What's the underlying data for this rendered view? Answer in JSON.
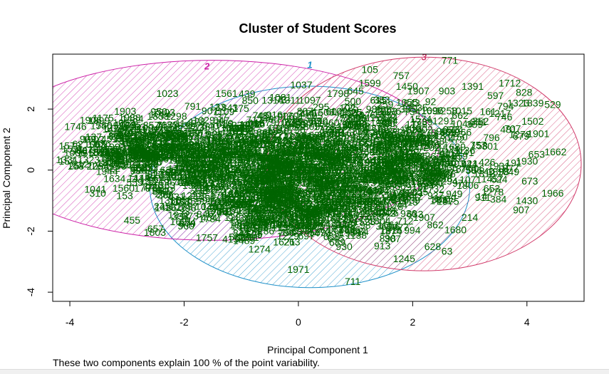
{
  "chart_data": {
    "type": "scatter",
    "title": "Cluster of Student Scores",
    "xlabel": "Principal Component 1",
    "ylabel": "Principal Component 2",
    "xlim": [
      -4.3,
      5.0
    ],
    "ylim": [
      -4.3,
      3.8
    ],
    "x_ticks": [
      -4,
      -2,
      0,
      2,
      4
    ],
    "y_ticks": [
      -4,
      -2,
      0,
      2
    ],
    "footnote": "These two components explain 100 % of the point variability.",
    "clusters": [
      {
        "name": "1",
        "color": "#1e90c8",
        "center": [
          0.2,
          -0.55
        ],
        "rx": 2.8,
        "ry": 3.3,
        "label_pos": [
          0.2,
          3.35
        ]
      },
      {
        "name": "2",
        "color": "#cc1fa6",
        "center": [
          -1.5,
          0.65
        ],
        "rx": 3.95,
        "ry": 2.95,
        "label_pos": [
          -1.6,
          3.3
        ]
      },
      {
        "name": "3",
        "color": "#d13a6a",
        "center": [
          2.2,
          0.2
        ],
        "rx": 2.75,
        "ry": 3.5,
        "label_pos": [
          2.2,
          3.6
        ]
      }
    ],
    "labeled_points": [
      {
        "label": "771",
        "x": 2.65,
        "y": 3.6
      },
      {
        "label": "105",
        "x": 1.25,
        "y": 3.3
      },
      {
        "label": "757",
        "x": 1.8,
        "y": 3.1
      },
      {
        "label": "1599",
        "x": 1.25,
        "y": 2.85
      },
      {
        "label": "1450",
        "x": 1.9,
        "y": 2.75
      },
      {
        "label": "1037",
        "x": 0.05,
        "y": 2.8
      },
      {
        "label": "439",
        "x": -0.9,
        "y": 2.5
      },
      {
        "label": "645",
        "x": 1.0,
        "y": 2.6
      },
      {
        "label": "1391",
        "x": 3.05,
        "y": 2.75
      },
      {
        "label": "1712",
        "x": 3.7,
        "y": 2.85
      },
      {
        "label": "828",
        "x": 3.95,
        "y": 2.55
      },
      {
        "label": "597",
        "x": 3.45,
        "y": 2.45
      },
      {
        "label": "1323",
        "x": 3.85,
        "y": 2.2
      },
      {
        "label": "1839",
        "x": 4.1,
        "y": 2.2
      },
      {
        "label": "529",
        "x": 4.45,
        "y": 2.15
      },
      {
        "label": "903",
        "x": 2.6,
        "y": 2.6
      },
      {
        "label": "1907",
        "x": 2.1,
        "y": 2.6
      },
      {
        "label": "1314",
        "x": -0.45,
        "y": 2.3
      },
      {
        "label": "1311",
        "x": -0.15,
        "y": 2.3
      },
      {
        "label": "1097",
        "x": 0.2,
        "y": 2.3
      },
      {
        "label": "615",
        "x": 1.4,
        "y": 2.3
      },
      {
        "label": "791",
        "x": -1.85,
        "y": 2.1
      },
      {
        "label": "1843",
        "x": -1.25,
        "y": 2.05
      },
      {
        "label": "7803",
        "x": -2.35,
        "y": 1.9
      },
      {
        "label": "907",
        "x": -1.55,
        "y": 1.95
      },
      {
        "label": "1015",
        "x": 2.85,
        "y": 1.95
      },
      {
        "label": "746",
        "x": 3.6,
        "y": 1.75
      },
      {
        "label": "1502",
        "x": 4.1,
        "y": 1.6
      },
      {
        "label": "1901",
        "x": 4.2,
        "y": 1.2
      },
      {
        "label": "536",
        "x": -3.1,
        "y": 1.45
      },
      {
        "label": "1531",
        "x": -3.95,
        "y": 0.7
      },
      {
        "label": "1573",
        "x": -4.0,
        "y": 0.8
      },
      {
        "label": "157",
        "x": -4.05,
        "y": 0.3
      },
      {
        "label": "1331",
        "x": -4.05,
        "y": 0.35
      },
      {
        "label": "1662",
        "x": 4.5,
        "y": 0.6
      },
      {
        "label": "1930",
        "x": 4.0,
        "y": 0.3
      },
      {
        "label": "673",
        "x": 4.05,
        "y": -0.35
      },
      {
        "label": "1966",
        "x": 4.45,
        "y": -0.75
      },
      {
        "label": "1430",
        "x": 4.0,
        "y": -1.0
      },
      {
        "label": "907",
        "x": 3.9,
        "y": -1.3
      },
      {
        "label": "384",
        "x": 3.5,
        "y": -0.95
      },
      {
        "label": "214",
        "x": 3.0,
        "y": -1.55
      },
      {
        "label": "1680",
        "x": 2.75,
        "y": -1.95
      },
      {
        "label": "63",
        "x": 2.6,
        "y": -2.65
      },
      {
        "label": "628",
        "x": 2.35,
        "y": -2.5
      },
      {
        "label": "1245",
        "x": 1.85,
        "y": -2.9
      },
      {
        "label": "1971",
        "x": 0.0,
        "y": -3.25
      },
      {
        "label": "711",
        "x": 0.95,
        "y": -3.65
      },
      {
        "label": "1787",
        "x": -1.95,
        "y": -1.2
      },
      {
        "label": "363",
        "x": -2.3,
        "y": -0.5
      },
      {
        "label": "1489",
        "x": -0.95,
        "y": -2.3
      },
      {
        "label": "1621",
        "x": -0.25,
        "y": -2.35
      },
      {
        "label": "930",
        "x": 0.8,
        "y": -2.5
      },
      {
        "label": "307",
        "x": 1.65,
        "y": -2.25
      },
      {
        "label": "1907",
        "x": 2.2,
        "y": -1.55
      }
    ]
  }
}
